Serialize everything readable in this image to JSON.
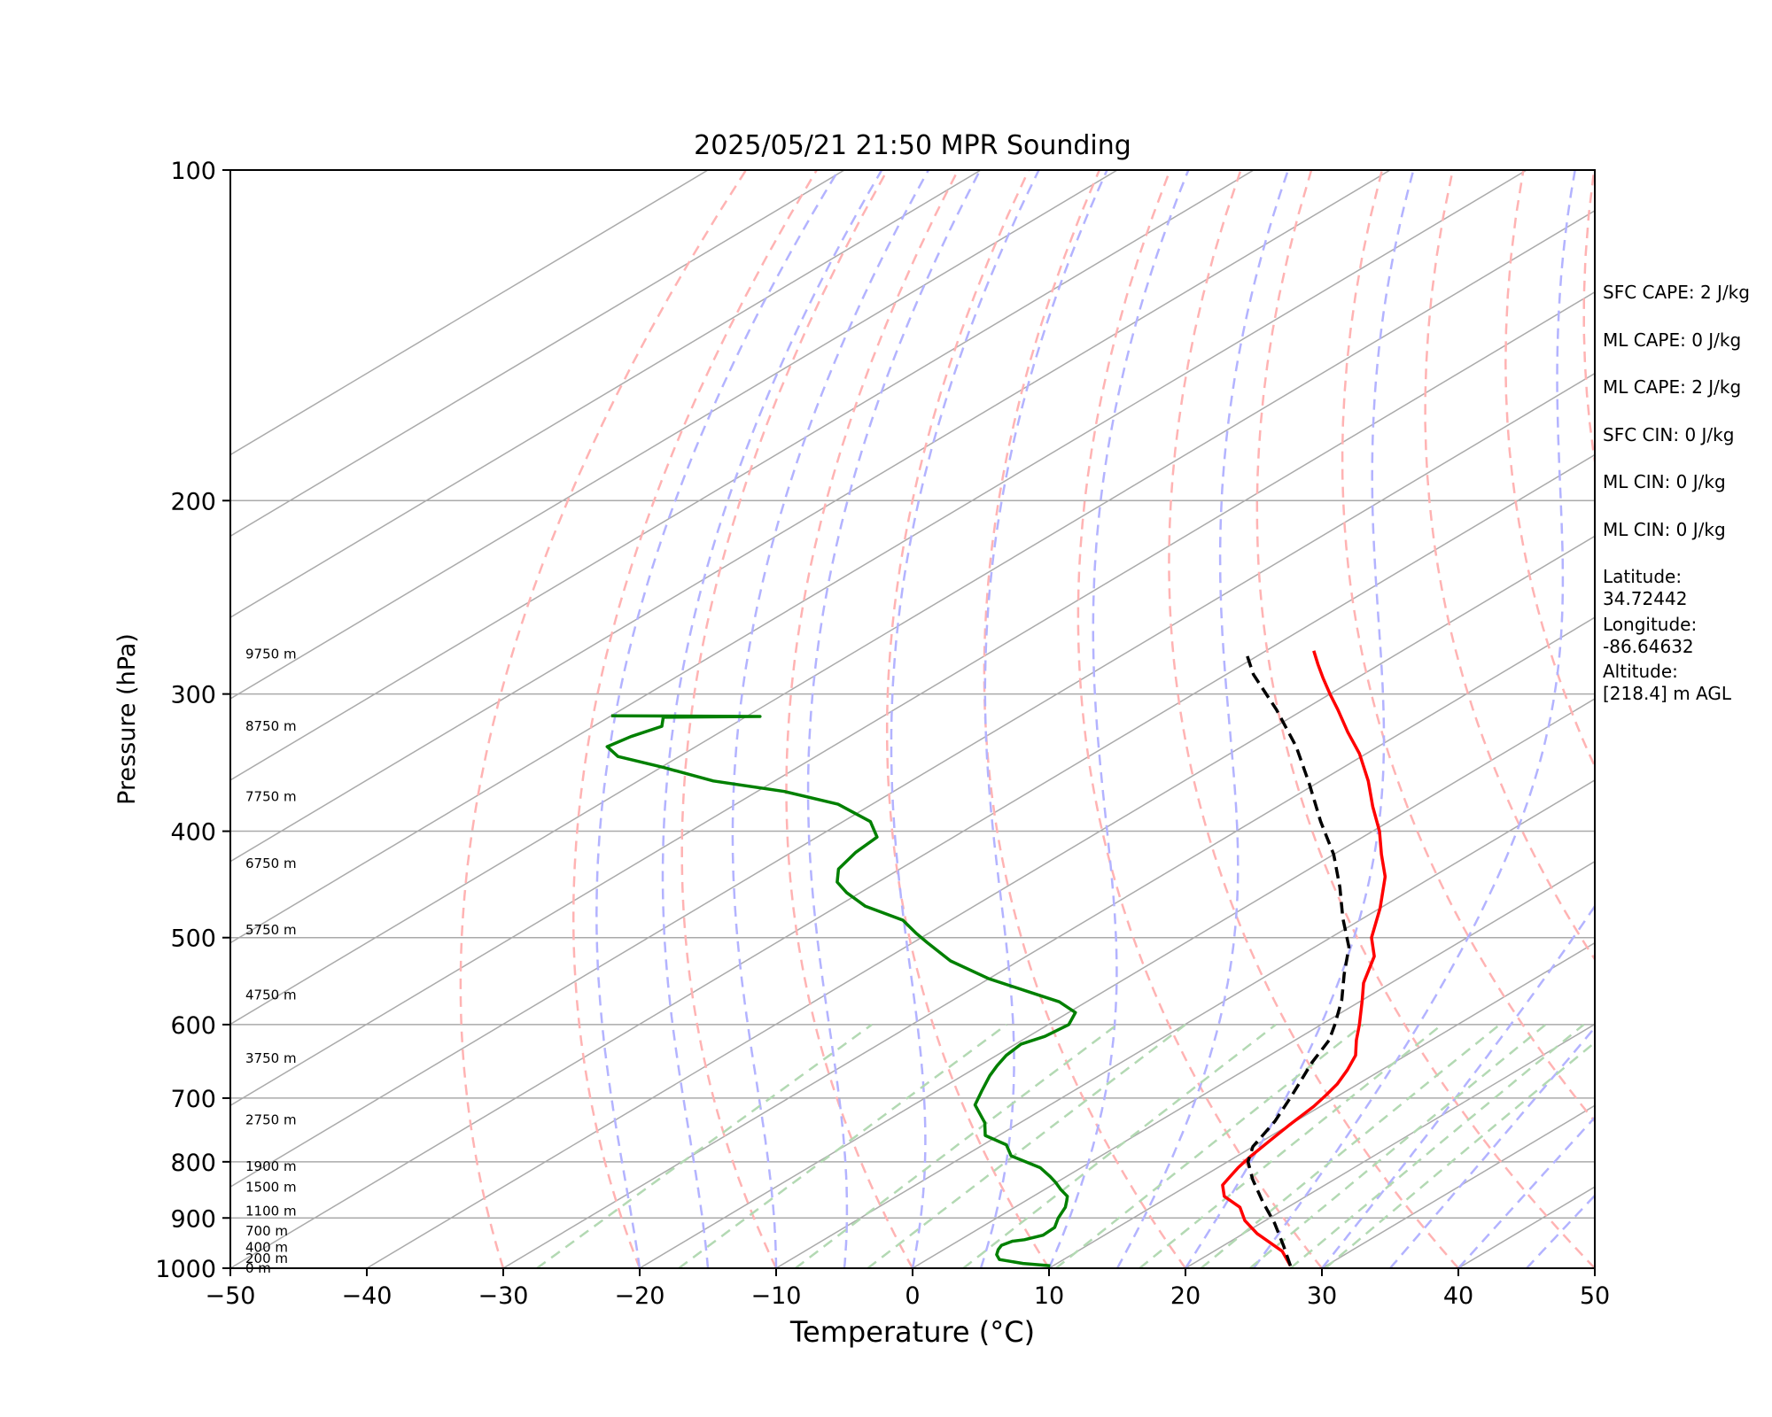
{
  "chart_data": {
    "type": "line",
    "title": "2025/05/21 21:50 MPR Sounding",
    "xlabel": "Temperature (°C)",
    "ylabel": "Pressure (hPa)",
    "xlim": [
      -50,
      50
    ],
    "ylim": [
      1000,
      100
    ],
    "y_scale": "log",
    "skew": 1.35,
    "x_ticks": [
      "−50",
      "−40",
      "−30",
      "−20",
      "−10",
      "0",
      "10",
      "20",
      "30",
      "40",
      "50"
    ],
    "y_ticks": [
      "100",
      "200",
      "300",
      "400",
      "500",
      "600",
      "700",
      "800",
      "900",
      "1000"
    ],
    "grid": true,
    "legend": "none",
    "colors": {
      "temperature": "#ff0000",
      "dewpoint": "#008000",
      "parcel": "#000000",
      "isotherm": "#aaaaaa",
      "dry_adiabat": "#ffb3b3",
      "moist_adiabat": "#b3b3ff",
      "mixing_ratio": "#b3d9b3"
    },
    "series": [
      {
        "key": "temperature",
        "style": "solid",
        "points": [
          [
            27.4,
            995
          ],
          [
            25.0,
            965
          ],
          [
            21.0,
            930
          ],
          [
            18.5,
            905
          ],
          [
            16.5,
            880
          ],
          [
            14.0,
            860
          ],
          [
            12.5,
            840
          ],
          [
            12.0,
            825
          ],
          [
            11.5,
            810
          ],
          [
            11.0,
            790
          ],
          [
            10.5,
            765
          ],
          [
            10.0,
            740
          ],
          [
            9.5,
            712
          ],
          [
            9.0,
            695
          ],
          [
            8.5,
            680
          ],
          [
            7.5,
            660
          ],
          [
            6.3,
            640
          ],
          [
            4.5,
            620
          ],
          [
            2.8,
            600
          ],
          [
            0.0,
            570
          ],
          [
            -2.0,
            550
          ],
          [
            -4.5,
            520
          ],
          [
            -7.0,
            500
          ],
          [
            -10.0,
            470
          ],
          [
            -13.5,
            440
          ],
          [
            -16.5,
            420
          ],
          [
            -19.5,
            400
          ],
          [
            -23.0,
            380
          ],
          [
            -26.5,
            360
          ],
          [
            -30.5,
            340
          ],
          [
            -34.0,
            325
          ],
          [
            -37.5,
            310
          ],
          [
            -40.0,
            300
          ],
          [
            -42.5,
            290
          ],
          [
            -44.5,
            282
          ],
          [
            -46.5,
            274
          ]
        ]
      },
      {
        "key": "dewpoint",
        "style": "solid",
        "points": [
          [
            9.8,
            995
          ],
          [
            7.5,
            990
          ],
          [
            5.3,
            982
          ],
          [
            4.5,
            972
          ],
          [
            4.0,
            962
          ],
          [
            3.7,
            953
          ],
          [
            4.0,
            945
          ],
          [
            4.7,
            942
          ],
          [
            5.5,
            933
          ],
          [
            5.4,
            918
          ],
          [
            4.5,
            900
          ],
          [
            3.7,
            880
          ],
          [
            3.0,
            868
          ],
          [
            2.5,
            860
          ],
          [
            1.2,
            848
          ],
          [
            -0.1,
            835
          ],
          [
            -1.2,
            825
          ],
          [
            -3.0,
            810
          ],
          [
            -6.6,
            790
          ],
          [
            -8.3,
            772
          ],
          [
            -11.0,
            757
          ],
          [
            -12.6,
            737
          ],
          [
            -15.5,
            710
          ],
          [
            -16.7,
            690
          ],
          [
            -18.0,
            668
          ],
          [
            -18.7,
            654
          ],
          [
            -19.3,
            640
          ],
          [
            -19.6,
            625
          ],
          [
            -18.8,
            615
          ],
          [
            -18.5,
            600
          ],
          [
            -19.5,
            585
          ],
          [
            -22.0,
            572
          ],
          [
            -25.5,
            560
          ],
          [
            -30.0,
            545
          ],
          [
            -35.0,
            525
          ],
          [
            -39.0,
            505
          ],
          [
            -41.0,
            495
          ],
          [
            -43.5,
            482
          ],
          [
            -48.0,
            468
          ],
          [
            -51.0,
            455
          ],
          [
            -53.0,
            445
          ],
          [
            -54.5,
            433
          ],
          [
            -55.3,
            418
          ],
          [
            -55.6,
            405
          ],
          [
            -58.0,
            392
          ],
          [
            -62.5,
            378
          ],
          [
            -68.0,
            368
          ],
          [
            -74.5,
            360
          ],
          [
            -79.8,
            350
          ],
          [
            -84.5,
            342
          ],
          [
            -86.5,
            335
          ],
          [
            -86.0,
            328
          ],
          [
            -85.0,
            321
          ],
          [
            -86.0,
            315
          ],
          [
            -79.0,
            314.5
          ],
          [
            -90.0,
            314
          ]
        ]
      },
      {
        "key": "parcel",
        "style": "dashed",
        "points": [
          [
            27.4,
            995
          ],
          [
            24.5,
            955
          ],
          [
            21.0,
            910
          ],
          [
            17.5,
            870
          ],
          [
            14.0,
            830
          ],
          [
            11.5,
            800
          ],
          [
            10.0,
            775
          ],
          [
            8.5,
            735
          ],
          [
            6.5,
            695
          ],
          [
            4.0,
            650
          ],
          [
            2.5,
            620
          ],
          [
            1.0,
            600
          ],
          [
            -1.5,
            570
          ],
          [
            -4.5,
            540
          ],
          [
            -7.5,
            510
          ],
          [
            -11.5,
            480
          ],
          [
            -15.5,
            450
          ],
          [
            -20.0,
            420
          ],
          [
            -25.0,
            392
          ],
          [
            -30.5,
            362
          ],
          [
            -36.0,
            335
          ],
          [
            -42.0,
            310
          ],
          [
            -48.0,
            288
          ],
          [
            -51.5,
            274
          ]
        ]
      }
    ],
    "height_labels": [
      {
        "text": "0 m",
        "p": 1000
      },
      {
        "text": "200 m",
        "p": 980
      },
      {
        "text": "400 m",
        "p": 957
      },
      {
        "text": "700 m",
        "p": 925
      },
      {
        "text": "1100 m",
        "p": 887
      },
      {
        "text": "1500 m",
        "p": 844
      },
      {
        "text": "1900 m",
        "p": 808
      },
      {
        "text": "2750 m",
        "p": 733
      },
      {
        "text": "3750 m",
        "p": 644
      },
      {
        "text": "4750 m",
        "p": 564
      },
      {
        "text": "5750 m",
        "p": 492
      },
      {
        "text": "6750 m",
        "p": 428
      },
      {
        "text": "7750 m",
        "p": 372
      },
      {
        "text": "8750 m",
        "p": 321
      },
      {
        "text": "9750 m",
        "p": 276
      }
    ],
    "annotations": [
      "SFC CAPE: 2 J/kg",
      "ML CAPE: 0 J/kg",
      "ML CAPE: 2 J/kg",
      "SFC CIN: 0 J/kg",
      "ML CIN: 0 J/kg",
      "ML CIN: 0 J/kg",
      "Latitude:\n34.72442",
      "Longitude:\n-86.64632",
      "Altitude:\n[218.4] m AGL"
    ]
  }
}
